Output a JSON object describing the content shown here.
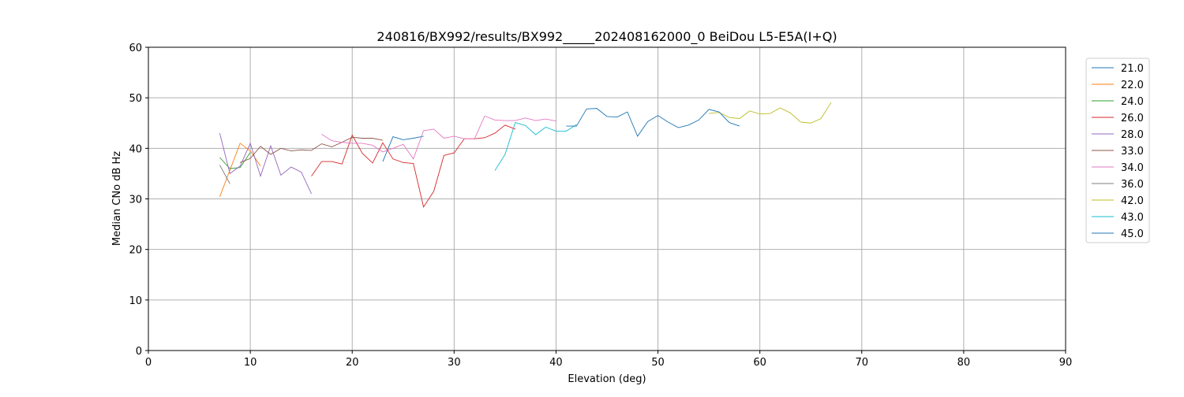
{
  "chart_data": {
    "type": "line",
    "title": "240816/BX992/results/BX992_____202408162000_0 BeiDou L5-E5A(I+Q)",
    "xlabel": "Elevation (deg)",
    "ylabel": "Median CNo dB Hz",
    "xlim": [
      0,
      90
    ],
    "ylim": [
      0,
      60
    ],
    "xticks": [
      0,
      10,
      20,
      30,
      40,
      50,
      60,
      70,
      80,
      90
    ],
    "yticks": [
      0,
      10,
      20,
      30,
      40,
      50,
      60
    ],
    "grid": true,
    "legend_position": "outside-right-top",
    "series": [
      {
        "name": "21.0",
        "color": "#1f77b4",
        "x": [
          23,
          24,
          25,
          26,
          27
        ],
        "y": [
          37.4,
          42.3,
          41.7,
          42.0,
          42.4
        ]
      },
      {
        "name": "22.0",
        "color": "#ff7f0e",
        "x": [
          7,
          8,
          9,
          10,
          11
        ],
        "y": [
          30.4,
          35.7,
          41.0,
          39.5,
          36.5
        ]
      },
      {
        "name": "24.0",
        "color": "#2ca02c",
        "x": [
          7,
          8,
          9,
          10
        ],
        "y": [
          38.2,
          36.0,
          36.2,
          39.2
        ]
      },
      {
        "name": "26.0",
        "color": "#d62728",
        "x": [
          16,
          17,
          18,
          19,
          20,
          21,
          22,
          23,
          24,
          25,
          26,
          27,
          28,
          29,
          30,
          31,
          32,
          33,
          34,
          35,
          36
        ],
        "y": [
          34.5,
          37.4,
          37.4,
          36.9,
          42.6,
          39.0,
          37.1,
          41.1,
          37.9,
          37.2,
          37.0,
          28.4,
          31.5,
          38.6,
          39.1,
          41.9,
          41.9,
          42.1,
          43.0,
          44.6,
          43.8
        ]
      },
      {
        "name": "28.0",
        "color": "#9467bd",
        "x": [
          7,
          8,
          9,
          10,
          11,
          12,
          13,
          14,
          15,
          16
        ],
        "y": [
          43.0,
          35.0,
          36.5,
          41.0,
          34.5,
          40.5,
          34.7,
          36.3,
          35.3,
          31.0
        ]
      },
      {
        "name": "33.0",
        "color": "#8c564b",
        "x": [
          9,
          10,
          11,
          12,
          13,
          14,
          15,
          16,
          17,
          18,
          19,
          20,
          21,
          22,
          23
        ],
        "y": [
          37.2,
          38.0,
          40.4,
          38.8,
          40.0,
          39.5,
          39.7,
          39.6,
          40.9,
          40.3,
          41.2,
          42.2,
          42.0,
          42.0,
          41.6
        ]
      },
      {
        "name": "34.0",
        "color": "#e377c2",
        "x": [
          17,
          18,
          19,
          20,
          21,
          22,
          23,
          24,
          25,
          26,
          27,
          28,
          29,
          30,
          31,
          32,
          33,
          34,
          35,
          36,
          37,
          38,
          39,
          40
        ],
        "y": [
          42.8,
          41.5,
          41.2,
          41.0,
          41.0,
          40.6,
          39.3,
          40.0,
          40.8,
          37.9,
          43.5,
          43.8,
          42.0,
          42.4,
          41.9,
          41.9,
          46.4,
          45.6,
          45.5,
          45.5,
          46.0,
          45.5,
          45.8,
          45.4
        ]
      },
      {
        "name": "36.0",
        "color": "#7f7f7f",
        "x": [
          7,
          8
        ],
        "y": [
          36.7,
          33.0
        ]
      },
      {
        "name": "42.0",
        "color": "#bcbd22",
        "x": [
          55,
          56,
          57,
          58,
          59,
          60,
          61,
          62,
          63,
          64,
          65,
          66,
          67
        ],
        "y": [
          46.9,
          47.1,
          46.1,
          45.9,
          47.4,
          46.8,
          46.9,
          48.0,
          47.0,
          45.2,
          45.0,
          45.9,
          49.1
        ]
      },
      {
        "name": "43.0",
        "color": "#17becf",
        "x": [
          34,
          35,
          36,
          37,
          38,
          39,
          40,
          41,
          42
        ],
        "y": [
          35.6,
          38.8,
          45.1,
          44.5,
          42.7,
          44.2,
          43.4,
          43.4,
          44.7
        ]
      },
      {
        "name": "45.0",
        "color": "#1f77b4",
        "x": [
          41,
          42,
          43,
          44,
          45,
          46,
          47,
          48,
          49,
          50,
          51,
          52,
          53,
          54,
          55,
          56,
          57,
          58
        ],
        "y": [
          44.4,
          44.4,
          47.8,
          47.9,
          46.3,
          46.2,
          47.2,
          42.4,
          45.3,
          46.5,
          45.2,
          44.1,
          44.6,
          45.6,
          47.7,
          47.2,
          45.1,
          44.4
        ]
      }
    ]
  }
}
